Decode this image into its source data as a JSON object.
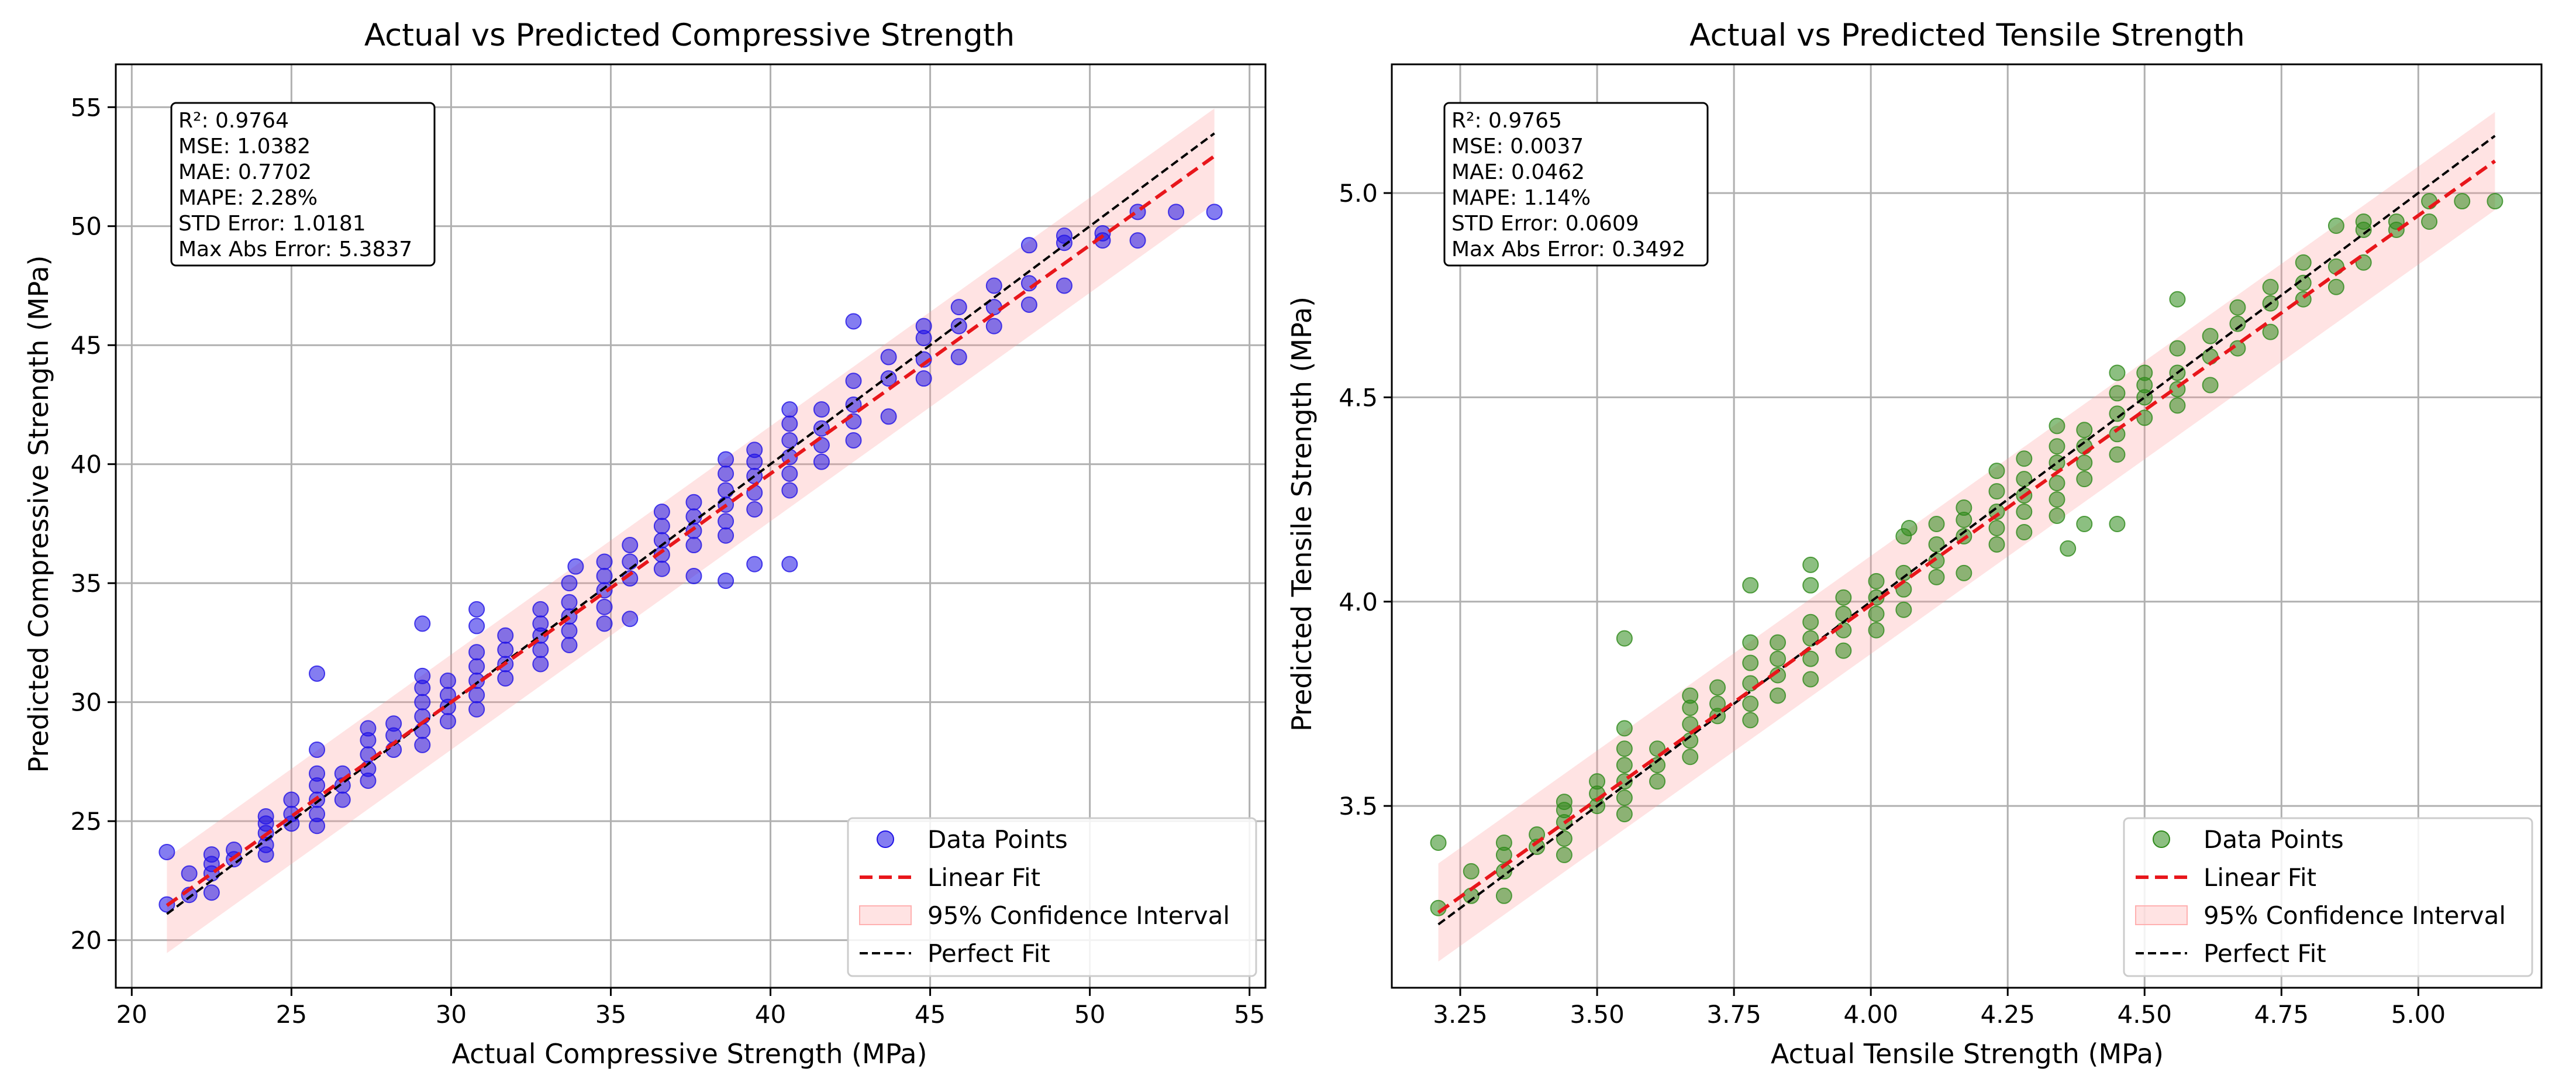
{
  "chart_data": [
    {
      "type": "scatter",
      "title": "Actual vs Predicted Compressive Strength",
      "xlabel": "Actual Compressive Strength (MPa)",
      "ylabel": "Predicted Compressive Strength (MPa)",
      "xlim": [
        19.5,
        55.5
      ],
      "ylim": [
        18.0,
        56.8
      ],
      "xticks": [
        20,
        25,
        30,
        35,
        40,
        45,
        50,
        55
      ],
      "xtick_labels": [
        "20",
        "25",
        "30",
        "35",
        "40",
        "45",
        "50",
        "55"
      ],
      "yticks": [
        20,
        25,
        30,
        35,
        40,
        45,
        50,
        55
      ],
      "ytick_labels": [
        "20",
        "25",
        "30",
        "35",
        "40",
        "45",
        "50",
        "55"
      ],
      "grid": true,
      "point_color": "#1f12e6",
      "fit_line": {
        "slope": 0.96,
        "intercept": 1.2,
        "range": [
          21.1,
          53.9
        ]
      },
      "confidence_band_half_width": 2.0,
      "perfect_fit_range": [
        21.1,
        53.9
      ],
      "stats_box": [
        "R²: 0.9764",
        "MSE: 1.0382",
        "MAE: 0.7702",
        "MAPE: 2.28%",
        "STD Error: 1.0181",
        "Max Abs Error: 5.3837"
      ],
      "legend": [
        "Data Points",
        "Linear Fit",
        "95% Confidence Interval",
        "Perfect Fit"
      ],
      "legend_position": "bottom-right",
      "points": [
        [
          21.1,
          21.5
        ],
        [
          21.1,
          23.7
        ],
        [
          21.8,
          21.9
        ],
        [
          21.8,
          22.8
        ],
        [
          22.5,
          22.0
        ],
        [
          22.5,
          22.8
        ],
        [
          22.5,
          23.2
        ],
        [
          22.5,
          23.6
        ],
        [
          23.2,
          23.4
        ],
        [
          23.2,
          23.8
        ],
        [
          24.2,
          23.6
        ],
        [
          24.2,
          24.0
        ],
        [
          24.2,
          24.5
        ],
        [
          24.2,
          24.9
        ],
        [
          24.2,
          25.2
        ],
        [
          25.0,
          24.9
        ],
        [
          25.0,
          25.3
        ],
        [
          25.0,
          25.9
        ],
        [
          25.8,
          24.8
        ],
        [
          25.8,
          25.3
        ],
        [
          25.8,
          25.9
        ],
        [
          25.8,
          26.5
        ],
        [
          25.8,
          27.0
        ],
        [
          25.8,
          28.0
        ],
        [
          25.8,
          31.2
        ],
        [
          26.6,
          25.9
        ],
        [
          26.6,
          26.5
        ],
        [
          26.6,
          27.0
        ],
        [
          27.4,
          26.7
        ],
        [
          27.4,
          27.2
        ],
        [
          27.4,
          27.8
        ],
        [
          27.4,
          28.4
        ],
        [
          27.4,
          28.9
        ],
        [
          28.2,
          28.0
        ],
        [
          28.2,
          28.6
        ],
        [
          28.2,
          29.1
        ],
        [
          29.1,
          28.2
        ],
        [
          29.1,
          28.8
        ],
        [
          29.1,
          29.4
        ],
        [
          29.1,
          30.0
        ],
        [
          29.1,
          30.6
        ],
        [
          29.1,
          31.1
        ],
        [
          29.1,
          33.3
        ],
        [
          29.9,
          29.2
        ],
        [
          29.9,
          29.8
        ],
        [
          29.9,
          30.3
        ],
        [
          29.9,
          30.9
        ],
        [
          30.8,
          29.7
        ],
        [
          30.8,
          30.3
        ],
        [
          30.8,
          30.9
        ],
        [
          30.8,
          31.5
        ],
        [
          30.8,
          32.1
        ],
        [
          30.8,
          33.2
        ],
        [
          30.8,
          33.9
        ],
        [
          31.7,
          31.0
        ],
        [
          31.7,
          31.6
        ],
        [
          31.7,
          32.2
        ],
        [
          31.7,
          32.8
        ],
        [
          32.8,
          31.6
        ],
        [
          32.8,
          32.2
        ],
        [
          32.8,
          32.8
        ],
        [
          32.8,
          33.3
        ],
        [
          32.8,
          33.9
        ],
        [
          33.7,
          32.4
        ],
        [
          33.7,
          33.0
        ],
        [
          33.7,
          33.6
        ],
        [
          33.7,
          34.2
        ],
        [
          33.7,
          35.0
        ],
        [
          33.9,
          35.7
        ],
        [
          34.8,
          33.3
        ],
        [
          34.8,
          34.0
        ],
        [
          34.8,
          34.7
        ],
        [
          34.8,
          35.3
        ],
        [
          34.8,
          35.9
        ],
        [
          35.6,
          33.5
        ],
        [
          35.6,
          35.2
        ],
        [
          35.6,
          35.9
        ],
        [
          35.6,
          36.6
        ],
        [
          36.6,
          35.6
        ],
        [
          36.6,
          36.2
        ],
        [
          36.6,
          36.8
        ],
        [
          36.6,
          37.4
        ],
        [
          36.6,
          38.0
        ],
        [
          37.6,
          35.3
        ],
        [
          37.6,
          36.6
        ],
        [
          37.6,
          37.2
        ],
        [
          37.6,
          37.8
        ],
        [
          37.6,
          38.4
        ],
        [
          38.6,
          35.1
        ],
        [
          38.6,
          37.0
        ],
        [
          38.6,
          37.6
        ],
        [
          38.6,
          38.3
        ],
        [
          38.6,
          38.9
        ],
        [
          38.6,
          39.6
        ],
        [
          38.6,
          40.2
        ],
        [
          39.5,
          35.8
        ],
        [
          39.5,
          38.1
        ],
        [
          39.5,
          38.8
        ],
        [
          39.5,
          39.5
        ],
        [
          39.5,
          40.1
        ],
        [
          39.5,
          40.6
        ],
        [
          40.6,
          35.8
        ],
        [
          40.6,
          38.9
        ],
        [
          40.6,
          39.6
        ],
        [
          40.6,
          40.3
        ],
        [
          40.6,
          41.0
        ],
        [
          40.6,
          41.7
        ],
        [
          40.6,
          42.3
        ],
        [
          41.6,
          40.1
        ],
        [
          41.6,
          40.8
        ],
        [
          41.6,
          41.5
        ],
        [
          41.6,
          42.3
        ],
        [
          42.6,
          41.0
        ],
        [
          42.6,
          41.8
        ],
        [
          42.6,
          42.5
        ],
        [
          42.6,
          43.5
        ],
        [
          42.6,
          46.0
        ],
        [
          43.7,
          42.0
        ],
        [
          43.7,
          43.6
        ],
        [
          43.7,
          44.5
        ],
        [
          44.8,
          43.6
        ],
        [
          44.8,
          44.4
        ],
        [
          44.8,
          45.3
        ],
        [
          44.8,
          45.8
        ],
        [
          45.9,
          44.5
        ],
        [
          45.9,
          45.8
        ],
        [
          45.9,
          46.6
        ],
        [
          47.0,
          45.8
        ],
        [
          47.0,
          46.6
        ],
        [
          47.0,
          47.5
        ],
        [
          48.1,
          46.7
        ],
        [
          48.1,
          47.6
        ],
        [
          48.1,
          49.2
        ],
        [
          49.2,
          47.5
        ],
        [
          49.2,
          49.3
        ],
        [
          49.2,
          49.6
        ],
        [
          50.4,
          49.4
        ],
        [
          50.4,
          49.7
        ],
        [
          51.5,
          49.4
        ],
        [
          51.5,
          50.6
        ],
        [
          52.7,
          50.6
        ],
        [
          53.9,
          50.6
        ]
      ]
    },
    {
      "type": "scatter",
      "title": "Actual vs Predicted Tensile Strength",
      "xlabel": "Actual Tensile Strength (MPa)",
      "ylabel": "Predicted Tensile Strength (MPa)",
      "xlim": [
        3.125,
        5.225
      ],
      "ylim": [
        3.055,
        5.315
      ],
      "xticks": [
        3.25,
        3.5,
        3.75,
        4.0,
        4.25,
        4.5,
        4.75,
        5.0
      ],
      "xtick_labels": [
        "3.25",
        "3.50",
        "3.75",
        "4.00",
        "4.25",
        "4.50",
        "4.75",
        "5.00"
      ],
      "yticks": [
        3.5,
        4.0,
        4.5,
        5.0
      ],
      "ytick_labels": [
        "3.5",
        "4.0",
        "4.5",
        "5.0"
      ],
      "grid": true,
      "point_color": "#2e8a1a",
      "fit_line": {
        "slope": 0.953,
        "intercept": 0.18,
        "range": [
          3.21,
          5.14
        ]
      },
      "confidence_band_half_width": 0.12,
      "perfect_fit_range": [
        3.21,
        5.14
      ],
      "stats_box": [
        "R²: 0.9765",
        "MSE: 0.0037",
        "MAE: 0.0462",
        "MAPE: 1.14%",
        "STD Error: 0.0609",
        "Max Abs Error: 0.3492"
      ],
      "legend": [
        "Data Points",
        "Linear Fit",
        "95% Confidence Interval",
        "Perfect Fit"
      ],
      "legend_position": "bottom-right",
      "points": [
        [
          3.21,
          3.25
        ],
        [
          3.21,
          3.41
        ],
        [
          3.27,
          3.28
        ],
        [
          3.27,
          3.34
        ],
        [
          3.33,
          3.28
        ],
        [
          3.33,
          3.34
        ],
        [
          3.33,
          3.38
        ],
        [
          3.33,
          3.41
        ],
        [
          3.39,
          3.4
        ],
        [
          3.39,
          3.43
        ],
        [
          3.44,
          3.38
        ],
        [
          3.44,
          3.42
        ],
        [
          3.44,
          3.46
        ],
        [
          3.44,
          3.49
        ],
        [
          3.44,
          3.51
        ],
        [
          3.5,
          3.5
        ],
        [
          3.5,
          3.53
        ],
        [
          3.5,
          3.56
        ],
        [
          3.55,
          3.48
        ],
        [
          3.55,
          3.52
        ],
        [
          3.55,
          3.56
        ],
        [
          3.55,
          3.6
        ],
        [
          3.55,
          3.64
        ],
        [
          3.55,
          3.69
        ],
        [
          3.55,
          3.91
        ],
        [
          3.61,
          3.56
        ],
        [
          3.61,
          3.6
        ],
        [
          3.61,
          3.64
        ],
        [
          3.67,
          3.62
        ],
        [
          3.67,
          3.66
        ],
        [
          3.67,
          3.7
        ],
        [
          3.67,
          3.74
        ],
        [
          3.67,
          3.77
        ],
        [
          3.72,
          3.72
        ],
        [
          3.72,
          3.75
        ],
        [
          3.72,
          3.79
        ],
        [
          3.78,
          3.71
        ],
        [
          3.78,
          3.75
        ],
        [
          3.78,
          3.8
        ],
        [
          3.78,
          3.85
        ],
        [
          3.78,
          3.9
        ],
        [
          3.78,
          4.04
        ],
        [
          3.83,
          3.77
        ],
        [
          3.83,
          3.82
        ],
        [
          3.83,
          3.86
        ],
        [
          3.83,
          3.9
        ],
        [
          3.89,
          3.81
        ],
        [
          3.89,
          3.86
        ],
        [
          3.89,
          3.91
        ],
        [
          3.89,
          3.95
        ],
        [
          3.89,
          4.04
        ],
        [
          3.89,
          4.09
        ],
        [
          3.95,
          3.88
        ],
        [
          3.95,
          3.93
        ],
        [
          3.95,
          3.97
        ],
        [
          3.95,
          4.01
        ],
        [
          4.01,
          3.93
        ],
        [
          4.01,
          3.97
        ],
        [
          4.01,
          4.01
        ],
        [
          4.01,
          4.05
        ],
        [
          4.06,
          3.98
        ],
        [
          4.06,
          4.03
        ],
        [
          4.06,
          4.07
        ],
        [
          4.06,
          4.16
        ],
        [
          4.07,
          4.18
        ],
        [
          4.12,
          4.06
        ],
        [
          4.12,
          4.1
        ],
        [
          4.12,
          4.14
        ],
        [
          4.12,
          4.19
        ],
        [
          4.17,
          4.07
        ],
        [
          4.17,
          4.16
        ],
        [
          4.17,
          4.2
        ],
        [
          4.17,
          4.23
        ],
        [
          4.23,
          4.14
        ],
        [
          4.23,
          4.18
        ],
        [
          4.23,
          4.22
        ],
        [
          4.23,
          4.27
        ],
        [
          4.23,
          4.32
        ],
        [
          4.28,
          4.17
        ],
        [
          4.28,
          4.22
        ],
        [
          4.28,
          4.26
        ],
        [
          4.28,
          4.3
        ],
        [
          4.28,
          4.35
        ],
        [
          4.34,
          4.21
        ],
        [
          4.34,
          4.25
        ],
        [
          4.34,
          4.29
        ],
        [
          4.34,
          4.34
        ],
        [
          4.34,
          4.38
        ],
        [
          4.34,
          4.43
        ],
        [
          4.36,
          4.13
        ],
        [
          4.39,
          4.3
        ],
        [
          4.39,
          4.34
        ],
        [
          4.39,
          4.38
        ],
        [
          4.39,
          4.42
        ],
        [
          4.39,
          4.19
        ],
        [
          4.45,
          4.19
        ],
        [
          4.45,
          4.36
        ],
        [
          4.45,
          4.41
        ],
        [
          4.45,
          4.46
        ],
        [
          4.45,
          4.51
        ],
        [
          4.45,
          4.56
        ],
        [
          4.5,
          4.45
        ],
        [
          4.5,
          4.5
        ],
        [
          4.5,
          4.53
        ],
        [
          4.5,
          4.56
        ],
        [
          4.56,
          4.48
        ],
        [
          4.56,
          4.52
        ],
        [
          4.56,
          4.56
        ],
        [
          4.56,
          4.62
        ],
        [
          4.56,
          4.74
        ],
        [
          4.62,
          4.53
        ],
        [
          4.62,
          4.6
        ],
        [
          4.62,
          4.65
        ],
        [
          4.67,
          4.62
        ],
        [
          4.67,
          4.68
        ],
        [
          4.67,
          4.72
        ],
        [
          4.73,
          4.66
        ],
        [
          4.73,
          4.73
        ],
        [
          4.73,
          4.77
        ],
        [
          4.79,
          4.74
        ],
        [
          4.79,
          4.78
        ],
        [
          4.79,
          4.83
        ],
        [
          4.85,
          4.77
        ],
        [
          4.85,
          4.82
        ],
        [
          4.85,
          4.92
        ],
        [
          4.9,
          4.83
        ],
        [
          4.9,
          4.91
        ],
        [
          4.9,
          4.93
        ],
        [
          4.96,
          4.91
        ],
        [
          4.96,
          4.93
        ],
        [
          5.02,
          4.93
        ],
        [
          5.02,
          4.98
        ],
        [
          5.08,
          4.98
        ],
        [
          5.14,
          4.98
        ]
      ]
    }
  ]
}
